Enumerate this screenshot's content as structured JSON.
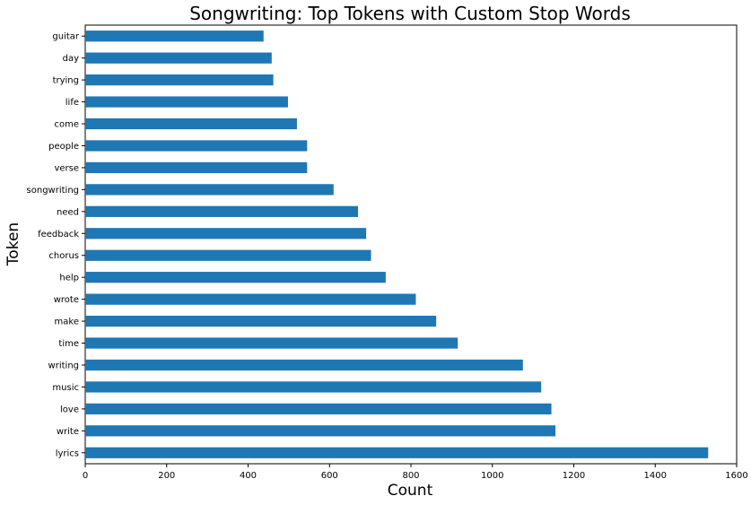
{
  "chart_data": {
    "type": "bar",
    "orientation": "horizontal",
    "title": "Songwriting: Top Tokens with Custom Stop Words",
    "xlabel": "Count",
    "ylabel": "Token",
    "categories": [
      "lyrics",
      "write",
      "love",
      "music",
      "writing",
      "time",
      "make",
      "wrote",
      "help",
      "chorus",
      "feedback",
      "need",
      "songwriting",
      "verse",
      "people",
      "come",
      "life",
      "trying",
      "day",
      "guitar"
    ],
    "values": [
      1530,
      1155,
      1145,
      1120,
      1075,
      915,
      862,
      812,
      738,
      702,
      690,
      670,
      610,
      545,
      545,
      520,
      498,
      462,
      458,
      438
    ],
    "xlim": [
      0,
      1600
    ],
    "xticks": [
      0,
      200,
      400,
      600,
      800,
      1000,
      1200,
      1400,
      1600
    ],
    "bar_color": "#1f77b4",
    "grid": false,
    "legend": "none"
  }
}
